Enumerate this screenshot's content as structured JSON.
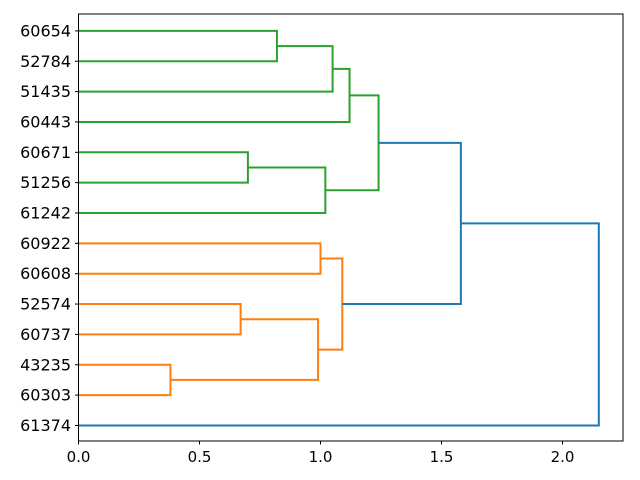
{
  "figure": {
    "background": "#ffffff",
    "kind": "hierarchical-clustering-dendrogram"
  },
  "chart_data": {
    "type": "dendrogram",
    "orientation": "left-labels-root-right",
    "title": "",
    "xlabel": "",
    "ylabel": "",
    "grid": false,
    "legend": null,
    "leaves": [
      "60654",
      "52784",
      "51435",
      "60443",
      "60671",
      "51256",
      "61242",
      "60922",
      "60608",
      "52574",
      "60737",
      "43235",
      "60303",
      "61374"
    ],
    "x_axis": {
      "ticks": [
        "0.0",
        "0.5",
        "1.0",
        "1.5",
        "2.0"
      ],
      "values": [
        0,
        0.5,
        1,
        1.5,
        2
      ],
      "range": [
        0,
        2.25
      ]
    },
    "colors": {
      "green": "#2ca02c",
      "orange": "#ff7f0e",
      "blue": "#1f77b4",
      "axis": "#000000"
    },
    "links": [
      {
        "merge": "60654+52784",
        "rows": [
          0,
          1
        ],
        "child_d": [
          0,
          0
        ],
        "d": 0.82,
        "color": "green"
      },
      {
        "merge": "(60654,52784)+51435",
        "rows": [
          0.5,
          2
        ],
        "child_d": [
          0.82,
          0
        ],
        "d": 1.05,
        "color": "green"
      },
      {
        "merge": "(..51435)+60443",
        "rows": [
          1.25,
          3
        ],
        "child_d": [
          1.05,
          0
        ],
        "d": 1.12,
        "color": "green"
      },
      {
        "merge": "60671+51256",
        "rows": [
          4,
          5
        ],
        "child_d": [
          0,
          0
        ],
        "d": 0.7,
        "color": "green"
      },
      {
        "merge": "(60671,51256)+61242",
        "rows": [
          4.5,
          6
        ],
        "child_d": [
          0.7,
          0
        ],
        "d": 1.02,
        "color": "green"
      },
      {
        "merge": "green-cluster-root",
        "rows": [
          2.125,
          5.25
        ],
        "child_d": [
          1.12,
          1.02
        ],
        "d": 1.24,
        "color": "green"
      },
      {
        "merge": "60922+60608",
        "rows": [
          7,
          8
        ],
        "child_d": [
          0,
          0
        ],
        "d": 1.0,
        "color": "orange"
      },
      {
        "merge": "52574+60737",
        "rows": [
          9,
          10
        ],
        "child_d": [
          0,
          0
        ],
        "d": 0.67,
        "color": "orange"
      },
      {
        "merge": "43235+60303",
        "rows": [
          11,
          12
        ],
        "child_d": [
          0,
          0
        ],
        "d": 0.38,
        "color": "orange"
      },
      {
        "merge": "orange-lower-merge",
        "rows": [
          9.5,
          11.5
        ],
        "child_d": [
          0.67,
          0.38
        ],
        "d": 0.99,
        "color": "orange"
      },
      {
        "merge": "orange-cluster-root",
        "rows": [
          7.5,
          10.5
        ],
        "child_d": [
          1.0,
          0.99
        ],
        "d": 1.09,
        "color": "orange"
      },
      {
        "merge": "green+orange",
        "rows": [
          3.6875,
          9
        ],
        "child_d": [
          1.24,
          1.09
        ],
        "d": 1.58,
        "color": "blue"
      },
      {
        "merge": "root+61374",
        "rows": [
          6.34375,
          13
        ],
        "child_d": [
          1.58,
          0
        ],
        "d": 2.15,
        "color": "blue"
      }
    ]
  }
}
